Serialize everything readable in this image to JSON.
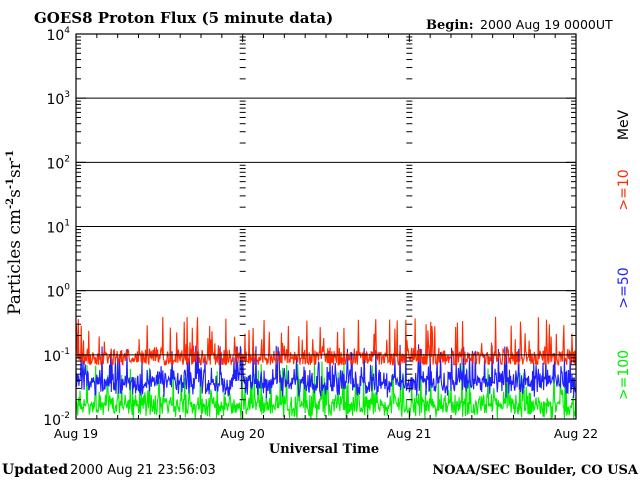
{
  "header": {
    "title": "GOES8 Proton Flux (5 minute data)",
    "begin_label": "Begin:",
    "begin_value": "2000 Aug 19 0000UT"
  },
  "footer": {
    "updated_label": "Updated",
    "updated_value": "2000 Aug 21 23:56:03",
    "source": "NOAA/SEC Boulder, CO USA"
  },
  "colors": {
    "ge10": "#ff2a00",
    "ge50": "#2020ff",
    "ge100": "#00ee00",
    "axis": "#000000"
  },
  "chart_data": {
    "type": "line",
    "title": "GOES8 Proton Flux (5 minute data)",
    "xlabel": "Universal Time",
    "ylabel_parts": [
      "Particles cm",
      "-2",
      "s",
      "-1",
      "sr",
      "-1"
    ],
    "yscale": "log",
    "ylim": [
      0.01,
      10000
    ],
    "y_ticks": [
      {
        "value": 0.01,
        "base": "10",
        "exp": "-2"
      },
      {
        "value": 0.1,
        "base": "10",
        "exp": "-1"
      },
      {
        "value": 1,
        "base": "10",
        "exp": "0"
      },
      {
        "value": 10,
        "base": "10",
        "exp": "1"
      },
      {
        "value": 100,
        "base": "10",
        "exp": "2"
      },
      {
        "value": 1000,
        "base": "10",
        "exp": "3"
      },
      {
        "value": 10000,
        "base": "10",
        "exp": "4"
      }
    ],
    "xlim": [
      "2000-08-19",
      "2000-08-22"
    ],
    "x_ticks": [
      {
        "date": "2000-08-19",
        "label": "Aug 19"
      },
      {
        "date": "2000-08-20",
        "label": "Aug 20"
      },
      {
        "date": "2000-08-21",
        "label": "Aug 21"
      },
      {
        "date": "2000-08-22",
        "label": "Aug 22"
      }
    ],
    "decade_gridlines": true,
    "legend_unit": "MeV",
    "series": [
      {
        "name": ">=10",
        "color": "#ff2a00",
        "typical": 0.1,
        "range": [
          0.07,
          0.4
        ]
      },
      {
        "name": ">=50",
        "color": "#2020ff",
        "typical": 0.05,
        "range": [
          0.02,
          0.15
        ]
      },
      {
        "name": ">=100",
        "color": "#00ee00",
        "typical": 0.02,
        "range": [
          0.01,
          0.08
        ]
      }
    ]
  }
}
